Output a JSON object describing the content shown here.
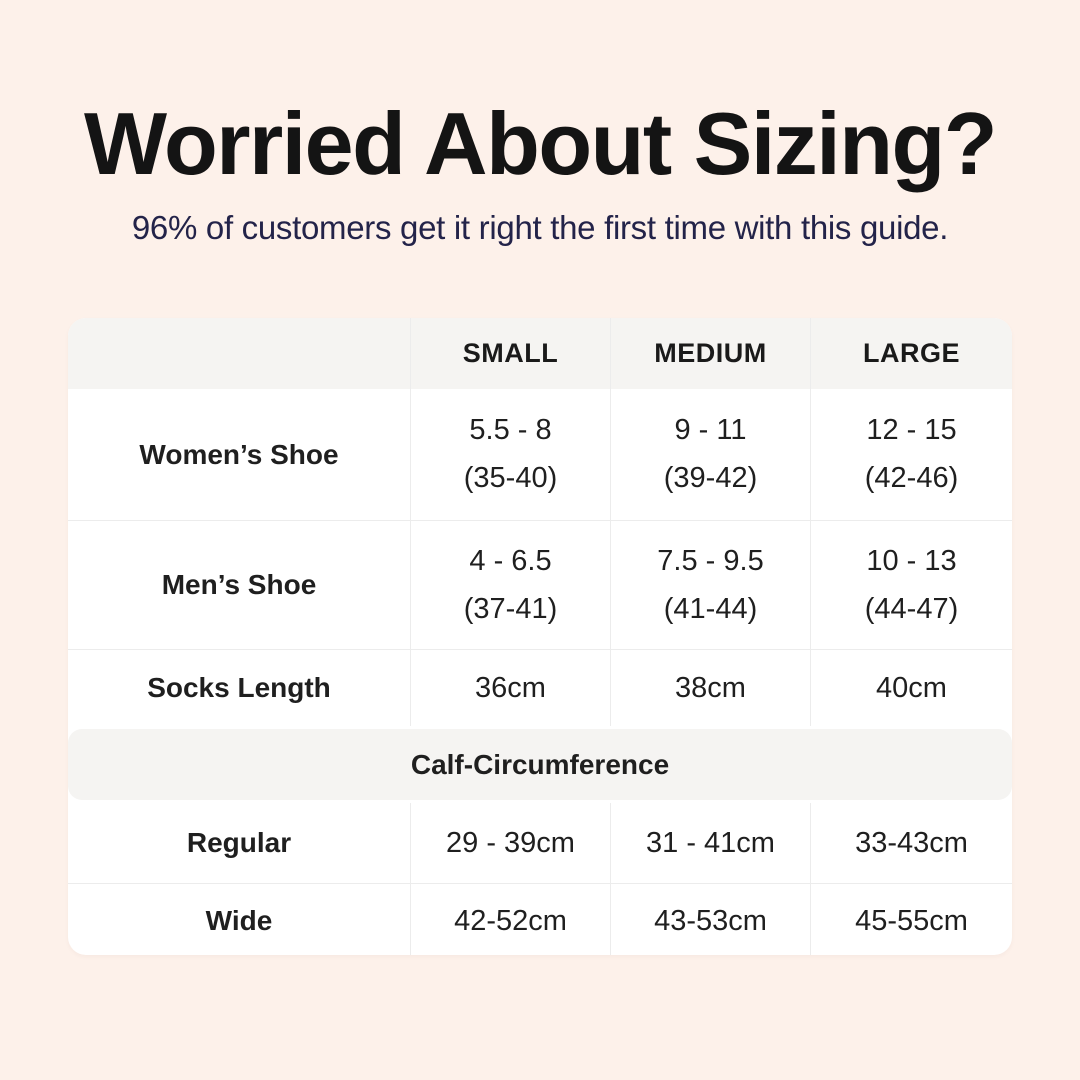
{
  "colors": {
    "background": "#fdf1ea",
    "title_text": "#141414",
    "subtitle_text": "#232349",
    "table_background": "#ffffff",
    "table_header_background": "#f5f4f2",
    "grid_line": "#ececec",
    "table_text": "#1f1f1f"
  },
  "header": {
    "title": "Worried About Sizing?",
    "subtitle": "96% of customers get it right the first time with this guide."
  },
  "table": {
    "col_headers": [
      "SMALL",
      "MEDIUM",
      "LARGE"
    ],
    "rows": [
      {
        "label": "Women’s Shoe",
        "cells": [
          {
            "line1": "5.5 - 8",
            "line2": "(35-40)"
          },
          {
            "line1": "9 - 11",
            "line2": "(39-42)"
          },
          {
            "line1": "12 - 15",
            "line2": "(42-46)"
          }
        ]
      },
      {
        "label": "Men’s Shoe",
        "cells": [
          {
            "line1": "4 - 6.5",
            "line2": "(37-41)"
          },
          {
            "line1": "7.5 - 9.5",
            "line2": "(41-44)"
          },
          {
            "line1": "10 - 13",
            "line2": "(44-47)"
          }
        ]
      },
      {
        "label": "Socks Length",
        "cells": [
          {
            "line1": "36cm"
          },
          {
            "line1": "38cm"
          },
          {
            "line1": "40cm"
          }
        ]
      }
    ],
    "section_header": "Calf-Circumference",
    "calf_rows": [
      {
        "label": "Regular",
        "cells": [
          {
            "line1": "29 - 39cm"
          },
          {
            "line1": "31 - 41cm"
          },
          {
            "line1": "33-43cm"
          }
        ]
      },
      {
        "label": "Wide",
        "cells": [
          {
            "line1": "42-52cm"
          },
          {
            "line1": "43-53cm"
          },
          {
            "line1": "45-55cm"
          }
        ]
      }
    ]
  }
}
